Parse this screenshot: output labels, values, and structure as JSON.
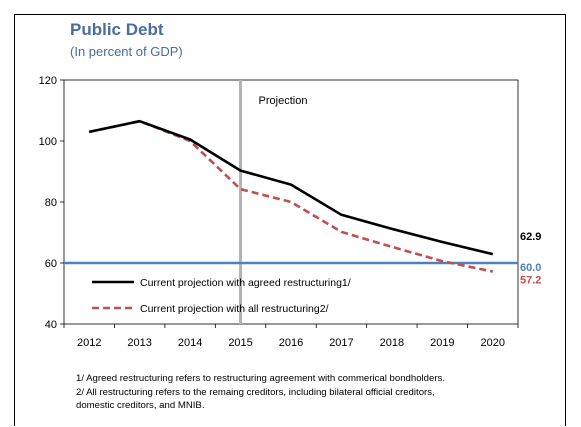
{
  "chart_data": {
    "type": "line",
    "title": "Public Debt",
    "subtitle": "(In percent of GDP)",
    "xlabel": "",
    "ylabel": "",
    "categories": [
      "2012",
      "2013",
      "2014",
      "2015",
      "2016",
      "2017",
      "2018",
      "2019",
      "2020"
    ],
    "ylim": [
      40,
      120
    ],
    "yticks": [
      40,
      60,
      80,
      100,
      120
    ],
    "grid": false,
    "projection_marker": {
      "at": "2015",
      "label": "Projection"
    },
    "series": [
      {
        "name": "Current projection with agreed restructuring1/",
        "color": "#000000",
        "style": "solid",
        "values": [
          103,
          106.5,
          100.5,
          90.3,
          85.7,
          75.8,
          71.2,
          66.9,
          62.9
        ],
        "end_label": "62.9"
      },
      {
        "name": "Current projection with all restructuring2/",
        "color": "#c0504d",
        "style": "dashed",
        "values": [
          103,
          106.5,
          100,
          84.2,
          80,
          70.2,
          65.3,
          60.6,
          57.2
        ],
        "end_label": "57.2"
      },
      {
        "name": "",
        "color": "#4f81bd",
        "style": "solid",
        "values": [
          60.0,
          60.0,
          60.0,
          60.0,
          60.0,
          60.0,
          60.0,
          60.0,
          60.0
        ],
        "end_label": "60.0"
      }
    ]
  },
  "notes": [
    "1/ Agreed restructuring refers to restructuring agreement with commerical bondholders.",
    "2/ All restructuring refers to the remaing  creditors, including bilateral official creditors,",
    "domestic creditors, and MNIB."
  ]
}
